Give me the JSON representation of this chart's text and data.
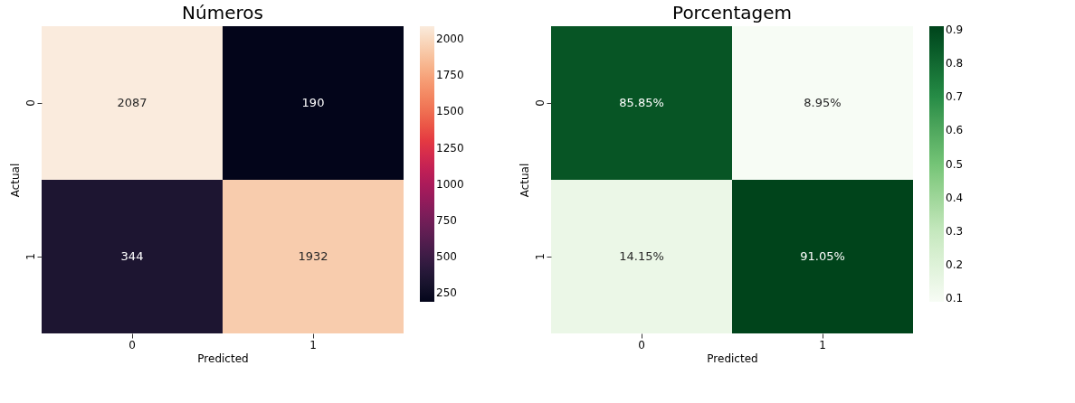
{
  "chart_data": [
    {
      "type": "heatmap",
      "title": "Números",
      "xlabel": "Predicted",
      "ylabel": "Actual",
      "categories": [
        "0",
        "1"
      ],
      "y_categories": [
        "0",
        "1"
      ],
      "cells": [
        [
          2087,
          190
        ],
        [
          344,
          1932
        ]
      ],
      "data_labels": true,
      "clim": [
        190,
        2087
      ],
      "cticks": [
        250,
        500,
        750,
        1000,
        1250,
        1500,
        1750,
        2000
      ]
    },
    {
      "type": "heatmap",
      "title": "Porcentagem",
      "xlabel": "Predicted",
      "ylabel": "Actual",
      "categories": [
        "0",
        "1"
      ],
      "y_categories": [
        "0",
        "1"
      ],
      "cells": [
        [
          0.8585,
          0.0895
        ],
        [
          0.1415,
          0.9105
        ]
      ],
      "cell_labels": [
        [
          "85.85%",
          "8.95%"
        ],
        [
          "14.15%",
          "91.05%"
        ]
      ],
      "clim": [
        0.0895,
        0.9105
      ],
      "cticks": [
        0.1,
        0.2,
        0.3,
        0.4,
        0.5,
        0.6,
        0.7,
        0.8,
        0.9
      ]
    }
  ]
}
